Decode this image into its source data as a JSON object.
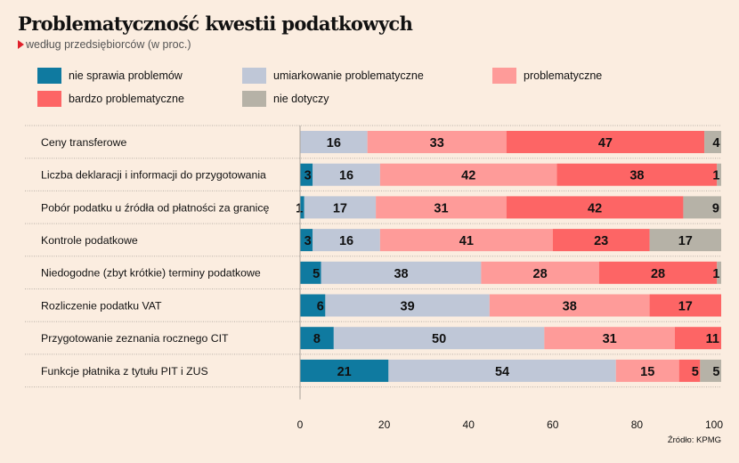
{
  "chart_data": {
    "type": "bar",
    "orientation": "horizontal",
    "stacked": true,
    "title": "Problematyczność kwestii podatkowych",
    "subtitle": "według przedsiębiorców (w proc.)",
    "source": "Źródło: KPMG",
    "xlabel": "",
    "ylabel": "",
    "xlim": [
      0,
      100
    ],
    "xticks": [
      0,
      20,
      40,
      60,
      80,
      100
    ],
    "grid": false,
    "legend_position": "top",
    "categories": [
      "Ceny transferowe",
      "Liczba deklaracji i informacji do przygotowania",
      "Pobór podatku u źródła od płatności za granicę",
      "Kontrole podatkowe",
      "Niedogodne (zbyt krótkie) terminy podatkowe",
      "Rozliczenie podatku VAT",
      "Przygotowanie zeznania rocznego CIT",
      "Funkcje płatnika z tytułu PIT i ZUS"
    ],
    "series": [
      {
        "name": "nie sprawia problemów",
        "color": "#0f7aa0",
        "values": [
          0,
          3,
          1,
          3,
          5,
          6,
          8,
          21
        ]
      },
      {
        "name": "umiarkowanie problematyczne",
        "color": "#bfc7d7",
        "values": [
          16,
          16,
          17,
          16,
          38,
          39,
          50,
          54
        ]
      },
      {
        "name": "problematyczne",
        "color": "#fe9b99",
        "values": [
          33,
          42,
          31,
          41,
          28,
          38,
          31,
          15
        ]
      },
      {
        "name": "bardzo problematyczne",
        "color": "#fd6565",
        "values": [
          47,
          38,
          42,
          23,
          28,
          17,
          11,
          5
        ]
      },
      {
        "name": "nie dotyczy",
        "color": "#b6b2a7",
        "values": [
          4,
          1,
          9,
          17,
          1,
          0,
          0,
          5
        ]
      }
    ]
  }
}
